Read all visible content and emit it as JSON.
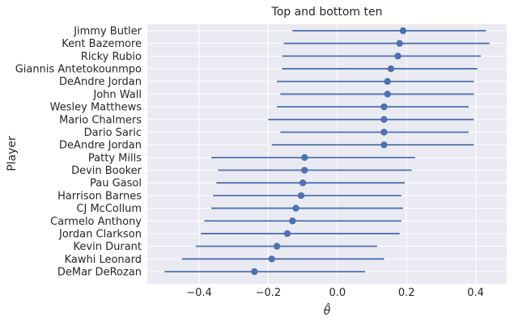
{
  "chart_data": {
    "type": "errorbar",
    "title": "Top and bottom ten",
    "xlabel": "θ̂",
    "ylabel": "Player",
    "xlim": [
      -0.55,
      0.49
    ],
    "xticks": [
      -0.4,
      -0.2,
      0.0,
      0.2,
      0.4
    ],
    "xtick_labels": [
      "−0.4",
      "−0.2",
      "0.0",
      "0.2",
      "0.4"
    ],
    "grid": true,
    "colors": {
      "background": "#eaeaf2",
      "grid": "#ffffff",
      "series": "#4c72b0"
    },
    "points": [
      {
        "player": "Jimmy Butler",
        "estimate": 0.19,
        "lower": -0.13,
        "upper": 0.43
      },
      {
        "player": "Kent Bazemore",
        "estimate": 0.18,
        "lower": -0.155,
        "upper": 0.44
      },
      {
        "player": "Ricky Rubio",
        "estimate": 0.175,
        "lower": -0.16,
        "upper": 0.415
      },
      {
        "player": "Giannis Antetokounmpo",
        "estimate": 0.155,
        "lower": -0.16,
        "upper": 0.405
      },
      {
        "player": "DeAndre Jordan",
        "estimate": 0.145,
        "lower": -0.175,
        "upper": 0.395
      },
      {
        "player": "John Wall",
        "estimate": 0.145,
        "lower": -0.165,
        "upper": 0.395
      },
      {
        "player": "Wesley Matthews",
        "estimate": 0.135,
        "lower": -0.175,
        "upper": 0.38
      },
      {
        "player": "Mario Chalmers",
        "estimate": 0.135,
        "lower": -0.2,
        "upper": 0.395
      },
      {
        "player": "Dario Saric",
        "estimate": 0.135,
        "lower": -0.165,
        "upper": 0.38
      },
      {
        "player": "DeAndre Jordan",
        "estimate": 0.135,
        "lower": -0.19,
        "upper": 0.395
      },
      {
        "player": "Patty Mills",
        "estimate": -0.095,
        "lower": -0.365,
        "upper": 0.225
      },
      {
        "player": "Devin Booker",
        "estimate": -0.095,
        "lower": -0.345,
        "upper": 0.215
      },
      {
        "player": "Pau Gasol",
        "estimate": -0.1,
        "lower": -0.35,
        "upper": 0.195
      },
      {
        "player": "Harrison Barnes",
        "estimate": -0.105,
        "lower": -0.36,
        "upper": 0.185
      },
      {
        "player": "CJ McCollum",
        "estimate": -0.12,
        "lower": -0.365,
        "upper": 0.19
      },
      {
        "player": "Carmelo Anthony",
        "estimate": -0.13,
        "lower": -0.385,
        "upper": 0.185
      },
      {
        "player": "Jordan Clarkson",
        "estimate": -0.145,
        "lower": -0.395,
        "upper": 0.18
      },
      {
        "player": "Kevin Durant",
        "estimate": -0.175,
        "lower": -0.41,
        "upper": 0.115
      },
      {
        "player": "Kawhi Leonard",
        "estimate": -0.19,
        "lower": -0.45,
        "upper": 0.135
      },
      {
        "player": "DeMar DeRozan",
        "estimate": -0.24,
        "lower": -0.5,
        "upper": 0.08
      }
    ]
  }
}
